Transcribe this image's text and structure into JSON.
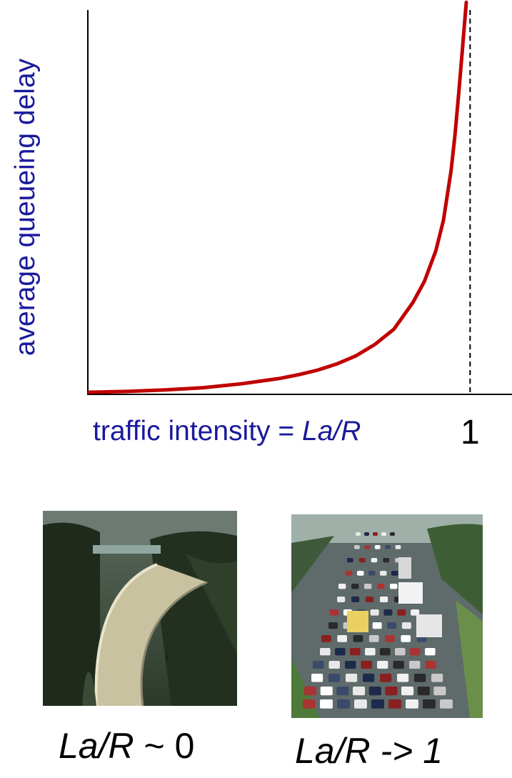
{
  "chart_data": {
    "type": "line",
    "ylabel": "average  queueing delay",
    "xlabel_prefix": "traffic intensity = ",
    "xlabel_formula": "La/R",
    "x_tick_label": "1",
    "xlim": [
      0,
      1.11
    ],
    "ylim": [
      0,
      1
    ],
    "series": [
      {
        "color": "#c00000",
        "x": [
          0,
          0.1,
          0.2,
          0.3,
          0.4,
          0.5,
          0.55,
          0.6,
          0.65,
          0.7,
          0.75,
          0.8,
          0.85,
          0.88,
          0.91,
          0.93,
          0.95,
          0.96,
          0.97,
          0.98,
          0.985,
          0.99
        ],
        "y": [
          0,
          0.002,
          0.006,
          0.012,
          0.022,
          0.036,
          0.046,
          0.058,
          0.074,
          0.095,
          0.125,
          0.165,
          0.235,
          0.29,
          0.37,
          0.45,
          0.58,
          0.67,
          0.78,
          0.9,
          0.96,
          1.02
        ]
      }
    ],
    "vline_x": 1.0,
    "grid": false
  },
  "captions": {
    "left_formula": "La/R",
    "left_rest": " ~ 0",
    "right_text": "La/R -> 1"
  },
  "images": {
    "left": "empty-highway-photo",
    "right": "traffic-jam-photo"
  }
}
